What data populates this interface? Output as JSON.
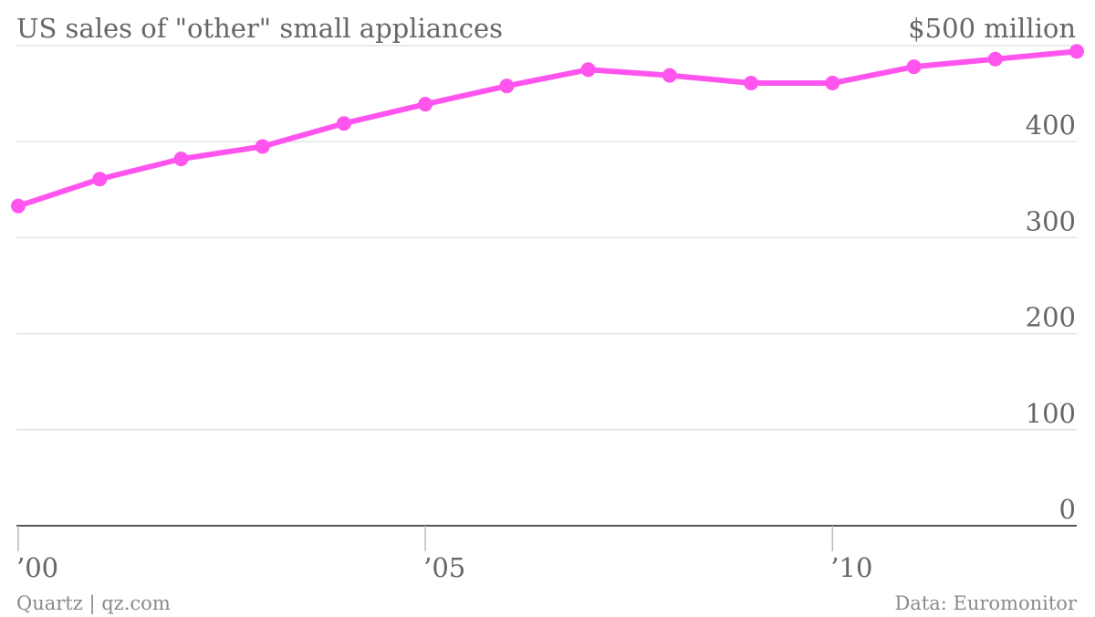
{
  "chart_data": {
    "type": "line",
    "title": "US sales of \"other\" small appliances",
    "unit_label": "$500 million",
    "x": [
      2000,
      2001,
      2002,
      2003,
      2004,
      2005,
      2006,
      2007,
      2008,
      2009,
      2010,
      2011,
      2012,
      2013
    ],
    "series": [
      {
        "values": [
          333,
          361,
          382,
          395,
          419,
          439,
          458,
          475,
          469,
          461,
          461,
          478,
          486,
          494
        ]
      }
    ],
    "ylim": [
      0,
      500
    ],
    "xlim": [
      2000,
      2013
    ],
    "y_ticks": [
      {
        "value": 400,
        "label": "400"
      },
      {
        "value": 300,
        "label": "300"
      },
      {
        "value": 200,
        "label": "200"
      },
      {
        "value": 100,
        "label": "100"
      },
      {
        "value": 0,
        "label": "0"
      }
    ],
    "x_ticks": [
      {
        "value": 2000,
        "label": "’00"
      },
      {
        "value": 2005,
        "label": "’05"
      },
      {
        "value": 2010,
        "label": "’10"
      }
    ],
    "grid": true,
    "line_color": "#ff55ee"
  },
  "footer": {
    "source_left": "Quartz | qz.com",
    "source_right": "Data: Euromonitor"
  }
}
